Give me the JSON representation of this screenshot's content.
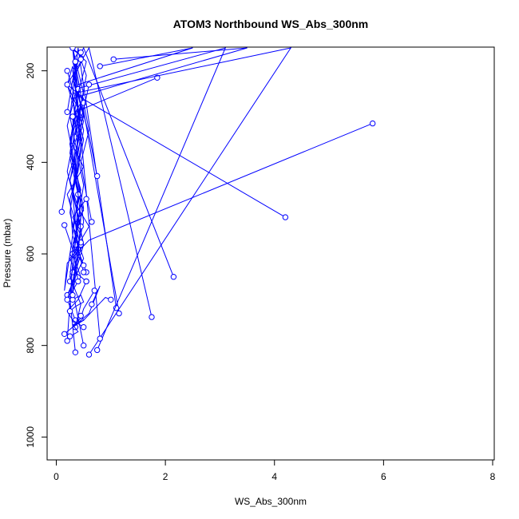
{
  "chart_data": {
    "type": "line",
    "title": "ATOM3 Northbound WS_Abs_300nm",
    "xlabel": "WS_Abs_300nm",
    "ylabel": "Pressure (mbar)",
    "xlim": [
      0,
      8
    ],
    "ylim": [
      1050,
      150
    ],
    "y_reversed": true,
    "x_ticks": [
      "0",
      "2",
      "4",
      "6",
      "8"
    ],
    "y_ticks": [
      "200",
      "400",
      "600",
      "800",
      "1000"
    ],
    "x_tick_values": [
      0,
      2,
      4,
      6,
      8
    ],
    "y_tick_values": [
      200,
      400,
      600,
      800,
      1000
    ],
    "grid": false,
    "legend": "none",
    "color": "#0000ff",
    "marker": "open-circle",
    "series": [
      {
        "x": [
          5.8,
          0.6,
          0.2,
          0.15,
          0.3,
          0.25,
          0.4,
          0.45,
          0.3,
          0.5,
          0.2,
          0.35,
          0.3,
          0.4,
          0.25,
          0.5,
          0.3,
          0.2
        ],
        "y": [
          315,
          570,
          620,
          680,
          560,
          480,
          420,
          360,
          300,
          260,
          230,
          200,
          180,
          160,
          150,
          170,
          220,
          290
        ]
      },
      {
        "x": [
          4.2,
          0.4,
          0.3,
          0.2,
          0.5,
          0.35,
          0.25,
          0.4,
          0.6,
          0.3,
          0.45,
          0.2,
          0.35
        ],
        "y": [
          520,
          255,
          190,
          230,
          310,
          380,
          440,
          500,
          540,
          600,
          650,
          700,
          745
        ]
      },
      {
        "x": [
          2.15,
          0.5,
          0.3,
          0.4,
          0.25,
          0.5,
          0.2,
          0.35,
          0.45,
          0.3
        ],
        "y": [
          650,
          150,
          200,
          280,
          350,
          410,
          470,
          530,
          590,
          640
        ]
      },
      {
        "x": [
          1.75,
          0.6,
          0.3,
          0.5,
          0.25,
          0.4,
          0.3,
          0.55
        ],
        "y": [
          738,
          150,
          210,
          300,
          390,
          470,
          560,
          640
        ]
      },
      {
        "x": [
          1.85,
          0.35,
          0.25,
          0.45,
          0.3,
          0.5,
          0.2
        ],
        "y": [
          215,
          290,
          380,
          460,
          540,
          610,
          690
        ]
      },
      {
        "x": [
          1.05,
          3.5,
          0.3,
          0.45,
          0.25,
          0.4,
          0.3
        ],
        "y": [
          175,
          150,
          260,
          350,
          440,
          520,
          600
        ]
      },
      {
        "x": [
          0.8,
          2.5,
          0.4,
          0.2,
          0.35,
          0.5,
          0.3,
          0.4
        ],
        "y": [
          190,
          150,
          230,
          320,
          410,
          500,
          580,
          660
        ]
      },
      {
        "x": [
          1.15,
          0.3,
          0.5,
          0.25,
          0.4,
          0.35
        ],
        "y": [
          730,
          150,
          250,
          360,
          470,
          580
        ]
      },
      {
        "x": [
          1.1,
          0.4,
          0.25,
          0.5,
          0.3
        ],
        "y": [
          718,
          150,
          300,
          450,
          600
        ]
      },
      {
        "x": [
          0.6,
          4.3,
          0.3,
          0.4,
          0.25,
          0.5
        ],
        "y": [
          820,
          150,
          250,
          380,
          510,
          640
        ]
      },
      {
        "x": [
          0.75,
          3.1,
          0.35,
          0.45,
          0.3,
          0.5,
          0.2
        ],
        "y": [
          810,
          150,
          240,
          340,
          460,
          580,
          700
        ]
      },
      {
        "x": [
          0.8,
          0.3,
          0.45,
          0.35,
          0.5,
          0.25
        ],
        "y": [
          785,
          150,
          280,
          400,
          530,
          660
        ]
      },
      {
        "x": [
          0.5,
          0.3,
          0.45,
          0.2,
          0.4,
          0.35
        ],
        "y": [
          800,
          680,
          540,
          420,
          300,
          180
        ]
      },
      {
        "x": [
          0.35,
          0.25,
          0.4,
          0.3,
          0.5,
          0.2
        ],
        "y": [
          815,
          700,
          590,
          470,
          350,
          230
        ]
      },
      {
        "x": [
          0.2,
          0.3,
          0.45,
          0.25,
          0.4
        ],
        "y": [
          790,
          620,
          490,
          360,
          240
        ]
      },
      {
        "x": [
          0.1,
          0.2,
          0.35,
          0.5,
          0.3,
          0.45
        ],
        "y": [
          508,
          440,
          380,
          290,
          220,
          160
        ]
      },
      {
        "x": [
          0.15,
          0.3,
          0.25,
          0.45,
          0.35
        ],
        "y": [
          537,
          590,
          650,
          710,
          760
        ]
      },
      {
        "x": [
          0.15,
          0.3,
          0.5,
          0.7,
          0.9,
          1.0
        ],
        "y": [
          775,
          760,
          745,
          720,
          695,
          700
        ]
      },
      {
        "x": [
          0.7,
          0.5,
          0.45,
          0.3,
          0.6,
          0.8,
          0.65
        ],
        "y": [
          680,
          720,
          740,
          760,
          730,
          670,
          710
        ]
      },
      {
        "x": [
          0.75,
          0.6,
          0.4,
          0.55,
          0.3
        ],
        "y": [
          430,
          340,
          250,
          180,
          150
        ]
      },
      {
        "x": [
          0.65,
          0.55,
          0.45,
          0.6,
          0.5
        ],
        "y": [
          530,
          470,
          400,
          330,
          270
        ]
      },
      {
        "x": [
          0.6,
          0.5,
          0.35,
          0.55,
          0.45
        ],
        "y": [
          230,
          285,
          340,
          210,
          175
        ]
      },
      {
        "x": [
          0.5,
          0.3,
          0.2,
          0.4,
          0.55
        ],
        "y": [
          760,
          745,
          725,
          700,
          660
        ]
      },
      {
        "x": [
          0.55,
          0.35,
          0.25,
          0.45
        ],
        "y": [
          660,
          640,
          610,
          580
        ]
      },
      {
        "x": [
          0.45,
          0.3,
          0.5,
          0.4
        ],
        "y": [
          575,
          540,
          505,
          470
        ]
      },
      {
        "x": [
          0.5,
          0.35,
          0.45,
          0.3,
          0.55
        ],
        "y": [
          625,
          595,
          560,
          520,
          480
        ]
      },
      {
        "x": [
          0.2,
          0.35,
          0.5,
          0.4,
          0.3,
          0.45
        ],
        "y": [
          200,
          260,
          330,
          400,
          470,
          540
        ]
      },
      {
        "x": [
          0.25,
          0.4,
          0.3,
          0.5,
          0.45
        ],
        "y": [
          780,
          770,
          755,
          745,
          735
        ]
      },
      {
        "x": [
          0.3,
          0.45,
          0.5,
          0.35,
          0.25
        ],
        "y": [
          700,
          690,
          705,
          715,
          725
        ]
      },
      {
        "x": [
          0.3,
          0.35,
          0.45,
          0.4,
          0.3
        ],
        "y": [
          300,
          420,
          520,
          610,
          690
        ]
      }
    ]
  }
}
